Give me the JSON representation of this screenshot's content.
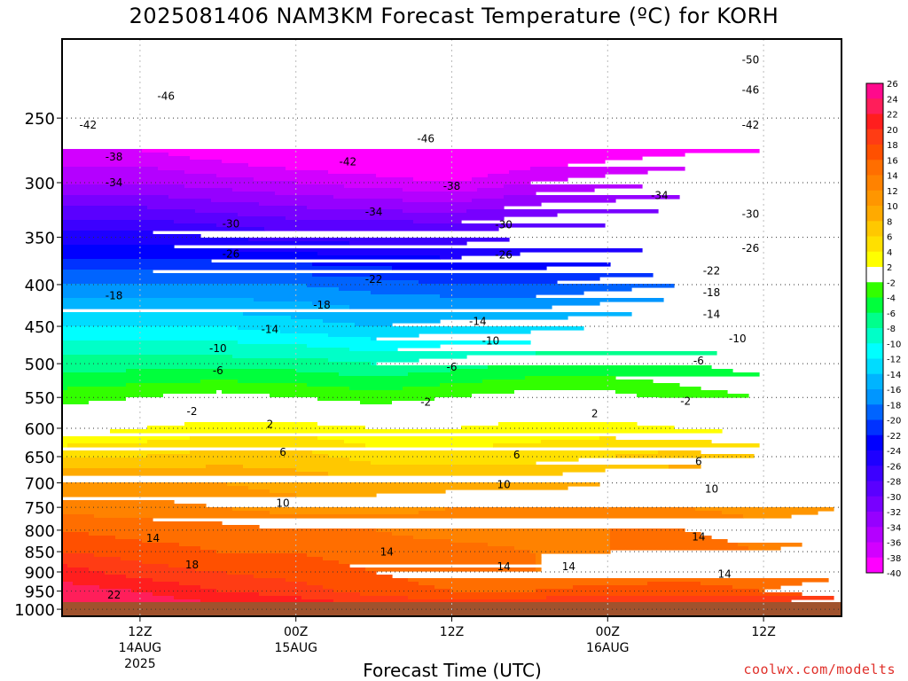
{
  "title": "2025081406 NAM3KM Forecast Temperature (ºC) for KORH",
  "credit": "coolwx.com/modelts",
  "chart_data": {
    "type": "heatmap",
    "title": "2025081406 NAM3KM Forecast Temperature (ºC) for KORH",
    "xlabel": "Forecast Time (UTC)",
    "ylabel": "",
    "x_range_hours": [
      6,
      66
    ],
    "x_ticks": [
      {
        "hour": 12,
        "lines": [
          "12Z",
          "14AUG",
          "2025"
        ]
      },
      {
        "hour": 24,
        "lines": [
          "00Z",
          "15AUG"
        ]
      },
      {
        "hour": 36,
        "lines": [
          "12Z"
        ]
      },
      {
        "hour": 48,
        "lines": [
          "00Z",
          "16AUG"
        ]
      },
      {
        "hour": 60,
        "lines": [
          "12Z"
        ]
      }
    ],
    "y_ticks_hpa": [
      250,
      300,
      350,
      400,
      450,
      500,
      550,
      600,
      650,
      700,
      750,
      800,
      850,
      900,
      950,
      1000
    ],
    "y_scale": "log",
    "ylim_hpa": [
      1020,
      200
    ],
    "surface_hpa": 980,
    "grid": true,
    "colorbar": {
      "placement": "right",
      "levels": [
        26,
        24,
        22,
        20,
        18,
        16,
        14,
        12,
        10,
        8,
        6,
        4,
        2,
        -2,
        -4,
        -6,
        -8,
        -10,
        -12,
        -14,
        -16,
        -18,
        -20,
        -22,
        -24,
        -26,
        -28,
        -30,
        -32,
        -34,
        -36,
        -38,
        -40
      ],
      "colors": [
        "#ff0a8c",
        "#ff1e5a",
        "#ff1e1e",
        "#ff3c14",
        "#ff5000",
        "#ff6e00",
        "#ff8200",
        "#ff9600",
        "#ffaa00",
        "#ffc800",
        "#ffe000",
        "#ffff00",
        "#ffffff",
        "#32ff00",
        "#00ff3c",
        "#00ff8c",
        "#00ffc8",
        "#00ffff",
        "#00dcff",
        "#00b4ff",
        "#0096ff",
        "#0064ff",
        "#0032ff",
        "#0000ff",
        "#1e00ff",
        "#3c00ff",
        "#5a00ff",
        "#7800ff",
        "#9600ff",
        "#b400ff",
        "#d200ff",
        "#ff00ff"
      ]
    },
    "times_hours": [
      6,
      12,
      18,
      24,
      30,
      36,
      42,
      48,
      54,
      60,
      66
    ],
    "series": [
      {
        "name": "1000",
        "values": [
          24,
          24,
          23,
          22,
          21,
          20,
          21,
          22,
          22,
          22,
          24
        ]
      },
      {
        "name": "950",
        "values": [
          23,
          22,
          20,
          19,
          17,
          16,
          16,
          17,
          17,
          16,
          18
        ]
      },
      {
        "name": "900",
        "values": [
          21,
          19,
          18,
          17,
          16,
          15,
          14,
          14,
          15,
          14,
          15
        ]
      },
      {
        "name": "850",
        "values": [
          18,
          17,
          16,
          16,
          15,
          15,
          14,
          14,
          15,
          14,
          15
        ]
      },
      {
        "name": "800",
        "values": [
          16,
          15,
          15,
          14,
          14,
          13,
          13,
          14,
          14,
          13,
          13
        ]
      },
      {
        "name": "750",
        "values": [
          13,
          13,
          12,
          11,
          11,
          12,
          12,
          12,
          12,
          11,
          12
        ]
      },
      {
        "name": "700",
        "values": [
          10,
          10,
          10,
          9,
          9,
          9,
          9,
          10,
          10,
          10,
          10
        ]
      },
      {
        "name": "650",
        "values": [
          6,
          6,
          7,
          7,
          5,
          5,
          5,
          6,
          7,
          6,
          6
        ]
      },
      {
        "name": "600",
        "values": [
          1,
          2,
          3,
          3,
          2,
          2,
          3,
          3,
          2,
          1,
          1
        ]
      },
      {
        "name": "550",
        "values": [
          -3,
          -2,
          -1,
          -2,
          -3,
          -2,
          -1,
          -1,
          -3,
          -4,
          -4
        ]
      },
      {
        "name": "500",
        "values": [
          -7,
          -7,
          -7,
          -7,
          -8,
          -7,
          -6,
          -6,
          -6,
          -7,
          -7
        ]
      },
      {
        "name": "450",
        "values": [
          -12,
          -12,
          -12,
          -13,
          -14,
          -13,
          -13,
          -12,
          -12,
          -12,
          -12
        ]
      },
      {
        "name": "400",
        "values": [
          -18,
          -18,
          -18,
          -18,
          -19,
          -20,
          -20,
          -19,
          -18,
          -18,
          -18
        ]
      },
      {
        "name": "350",
        "values": [
          -25,
          -25,
          -26,
          -27,
          -27,
          -27,
          -26,
          -26,
          -26,
          -26,
          -26
        ]
      },
      {
        "name": "300",
        "values": [
          -34,
          -34,
          -35,
          -36,
          -37,
          -38,
          -36,
          -35,
          -34,
          -34,
          -34
        ]
      },
      {
        "name": "250",
        "values": [
          -42,
          -42,
          -44,
          -46,
          -46,
          -46,
          -45,
          -44,
          -43,
          -42,
          -42
        ]
      },
      {
        "name": "200",
        "values": [
          -48,
          -48,
          -50,
          -52,
          -52,
          -51,
          -50,
          -50,
          -50,
          -49,
          -49
        ]
      }
    ],
    "contour_labels": [
      {
        "text": "-50",
        "hour": 59,
        "hpa": 212
      },
      {
        "text": "-46",
        "hour": 14,
        "hpa": 235
      },
      {
        "text": "-46",
        "hour": 59,
        "hpa": 231
      },
      {
        "text": "-46",
        "hour": 34,
        "hpa": 265
      },
      {
        "text": "-42",
        "hour": 8,
        "hpa": 255
      },
      {
        "text": "-42",
        "hour": 59,
        "hpa": 255
      },
      {
        "text": "-42",
        "hour": 28,
        "hpa": 283
      },
      {
        "text": "-38",
        "hour": 10,
        "hpa": 279
      },
      {
        "text": "-38",
        "hour": 36,
        "hpa": 303
      },
      {
        "text": "-34",
        "hour": 10,
        "hpa": 300
      },
      {
        "text": "-34",
        "hour": 30,
        "hpa": 326
      },
      {
        "text": "-34",
        "hour": 52,
        "hpa": 311
      },
      {
        "text": "-30",
        "hour": 19,
        "hpa": 337
      },
      {
        "text": "-30",
        "hour": 40,
        "hpa": 338
      },
      {
        "text": "-30",
        "hour": 59,
        "hpa": 328
      },
      {
        "text": "-26",
        "hour": 19,
        "hpa": 367
      },
      {
        "text": "-26",
        "hour": 40,
        "hpa": 368
      },
      {
        "text": "-26",
        "hour": 59,
        "hpa": 361
      },
      {
        "text": "-22",
        "hour": 30,
        "hpa": 394
      },
      {
        "text": "-22",
        "hour": 56,
        "hpa": 385
      },
      {
        "text": "-18",
        "hour": 10,
        "hpa": 413
      },
      {
        "text": "-18",
        "hour": 26,
        "hpa": 424
      },
      {
        "text": "-18",
        "hour": 56,
        "hpa": 409
      },
      {
        "text": "-14",
        "hour": 22,
        "hpa": 454
      },
      {
        "text": "-14",
        "hour": 38,
        "hpa": 444
      },
      {
        "text": "-14",
        "hour": 56,
        "hpa": 435
      },
      {
        "text": "-10",
        "hour": 18,
        "hpa": 479
      },
      {
        "text": "-10",
        "hour": 39,
        "hpa": 469
      },
      {
        "text": "-10",
        "hour": 58,
        "hpa": 466
      },
      {
        "text": "-6",
        "hour": 18,
        "hpa": 510
      },
      {
        "text": "-6",
        "hour": 36,
        "hpa": 505
      },
      {
        "text": "-6",
        "hour": 55,
        "hpa": 496
      },
      {
        "text": "-2",
        "hour": 16,
        "hpa": 572
      },
      {
        "text": "-2",
        "hour": 34,
        "hpa": 557
      },
      {
        "text": "-2",
        "hour": 54,
        "hpa": 556
      },
      {
        "text": "2",
        "hour": 22,
        "hpa": 593
      },
      {
        "text": "2",
        "hour": 47,
        "hpa": 576
      },
      {
        "text": "6",
        "hour": 23,
        "hpa": 642
      },
      {
        "text": "6",
        "hour": 41,
        "hpa": 647
      },
      {
        "text": "6",
        "hour": 55,
        "hpa": 659
      },
      {
        "text": "10",
        "hour": 23,
        "hpa": 741
      },
      {
        "text": "10",
        "hour": 40,
        "hpa": 703
      },
      {
        "text": "10",
        "hour": 56,
        "hpa": 712
      },
      {
        "text": "14",
        "hour": 13,
        "hpa": 818
      },
      {
        "text": "14",
        "hour": 31,
        "hpa": 851
      },
      {
        "text": "14",
        "hour": 40,
        "hpa": 887
      },
      {
        "text": "14",
        "hour": 45,
        "hpa": 887
      },
      {
        "text": "14",
        "hour": 55,
        "hpa": 815
      },
      {
        "text": "14",
        "hour": 57,
        "hpa": 906
      },
      {
        "text": "18",
        "hour": 16,
        "hpa": 882
      },
      {
        "text": "22",
        "hour": 10,
        "hpa": 960
      }
    ]
  }
}
